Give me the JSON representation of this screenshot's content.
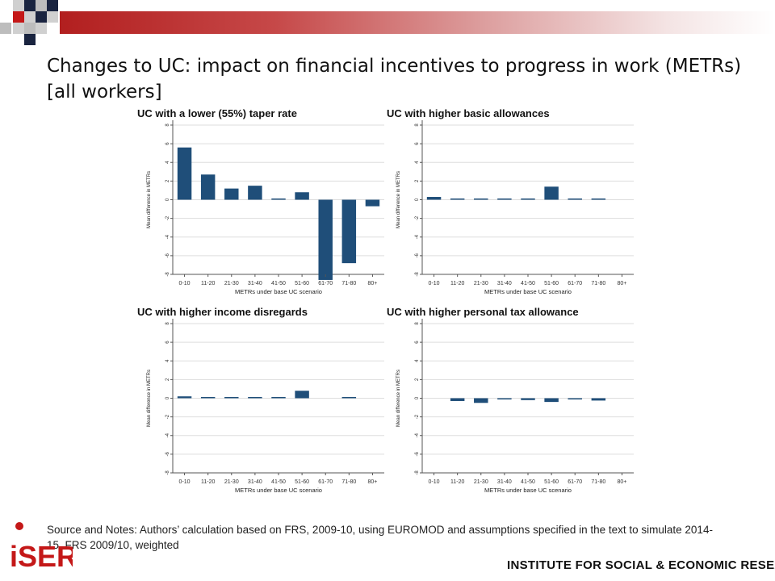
{
  "slide": {
    "title": "Changes to UC: impact on financial incentives to progress in work (METRs) [all workers]",
    "source_note": "Source and Notes: Authors’ calculation based on FRS, 2009-10, using EUROMOD and assumptions specified in the text to simulate 2014-15. FRS 2009/10, weighted",
    "footer_institute": "INSTITUTE FOR SOCIAL & ECONOMIC RESEARCH",
    "logo_text": "iSER"
  },
  "colors": {
    "bar": "#1f4e79",
    "accent_red": "#b21f1f",
    "grid": "#dddddd"
  },
  "chart_data": [
    {
      "type": "bar",
      "title": "UC with a lower (55%) taper rate",
      "xlabel": "METRs under base UC scenario",
      "ylabel": "Mean difference in METRs",
      "categories": [
        "0-10",
        "11-20",
        "21-30",
        "31-40",
        "41-50",
        "51-60",
        "61-70",
        "71-80",
        "80+"
      ],
      "values": [
        5.6,
        2.7,
        1.2,
        1.5,
        0.1,
        0.8,
        -8.6,
        -6.8,
        -0.7
      ],
      "ylim": [
        -8,
        8
      ],
      "yticks": [
        "8",
        "6",
        "4",
        "2",
        "0",
        "-2",
        "-4",
        "-6",
        "-8"
      ],
      "grid": true
    },
    {
      "type": "bar",
      "title": "UC with higher basic allowances",
      "xlabel": "METRs under base UC scenario",
      "ylabel": "Mean difference in METRs",
      "categories": [
        "0-10",
        "11-20",
        "21-30",
        "31-40",
        "41-50",
        "51-60",
        "61-70",
        "71-80",
        "80+"
      ],
      "values": [
        0.3,
        0.1,
        0.1,
        0.05,
        0.05,
        1.4,
        0.05,
        0.05,
        0
      ],
      "ylim": [
        -8,
        8
      ],
      "yticks": [
        "8",
        "6",
        "4",
        "2",
        "0",
        "-2",
        "-4",
        "-6",
        "-8"
      ],
      "grid": true
    },
    {
      "type": "bar",
      "title": "UC with higher income disregards",
      "xlabel": "METRs under base UC scenario",
      "ylabel": "Mean difference in METRs",
      "categories": [
        "0-10",
        "11-20",
        "21-30",
        "31-40",
        "41-50",
        "51-60",
        "61-70",
        "71-80",
        "80+"
      ],
      "values": [
        0.2,
        0.1,
        0.05,
        0.05,
        0.05,
        0.8,
        0,
        0.05,
        0
      ],
      "ylim": [
        -8,
        8
      ],
      "yticks": [
        "8",
        "6",
        "4",
        "2",
        "0",
        "-2",
        "-4",
        "-6",
        "-8"
      ],
      "grid": true
    },
    {
      "type": "bar",
      "title": "UC with higher personal tax allowance",
      "xlabel": "METRs under base UC scenario",
      "ylabel": "Mean difference in METRs",
      "categories": [
        "0-10",
        "11-20",
        "21-30",
        "31-40",
        "41-50",
        "51-60",
        "61-70",
        "71-80",
        "80+"
      ],
      "values": [
        0,
        -0.3,
        -0.5,
        -0.1,
        -0.2,
        -0.4,
        -0.1,
        -0.25,
        0
      ],
      "ylim": [
        -8,
        8
      ],
      "yticks": [
        "8",
        "6",
        "4",
        "2",
        "0",
        "-2",
        "-4",
        "-6",
        "-8"
      ],
      "grid": true
    }
  ]
}
